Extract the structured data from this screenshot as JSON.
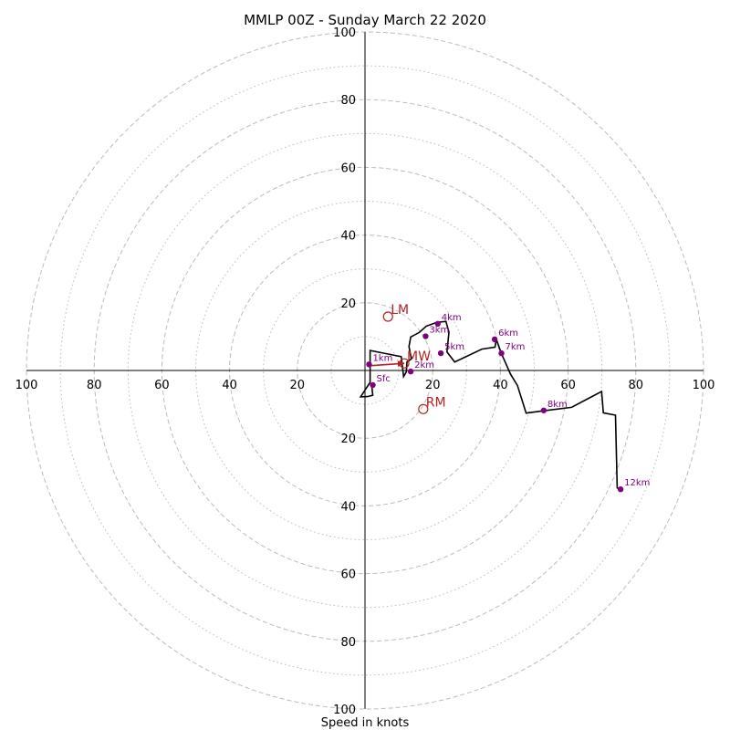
{
  "chart_data": {
    "type": "line",
    "title": "MMLP 00Z - Sunday March 22 2020",
    "xlabel": "Speed in knots",
    "ylabel": "",
    "xlim": [
      -100,
      100
    ],
    "ylim": [
      -100,
      100
    ],
    "ring_step_major": 20,
    "ring_step_minor": 10,
    "ring_labels": [
      "20",
      "40",
      "60",
      "80",
      "100"
    ],
    "grid": true,
    "hodograph": {
      "u": [
        2.0,
        2.3,
        0.7,
        -1.3,
        1.5,
        1.5,
        8.0,
        10.7,
        11.4,
        12.2,
        12.4,
        13.7,
        13.0,
        13.5,
        16.0,
        18.1,
        21.2,
        23.9,
        24.8,
        24.2,
        26.5,
        34.5,
        38.4,
        38.8,
        40.3,
        43.0,
        45.0,
        47.6,
        53.0,
        61.0,
        69.9,
        70.4,
        74.0,
        74.5,
        75.7
      ],
      "v": [
        -4.5,
        -7.3,
        -7.7,
        -7.8,
        -3.5,
        5.9,
        4.6,
        4.1,
        -1.8,
        -0.4,
        2.5,
        3.4,
        7.1,
        9.9,
        11.2,
        13.1,
        14.2,
        14.5,
        11.3,
        5.5,
        2.5,
        6.3,
        6.9,
        9.2,
        5.0,
        -1.1,
        -4.4,
        -12.6,
        -11.9,
        -10.9,
        -6.2,
        -12.5,
        -13.2,
        -34.7,
        -35.2
      ]
    },
    "height_markers": [
      {
        "label": "Sfc",
        "u": 2.3,
        "v": -4.3
      },
      {
        "label": "1km",
        "u": 1.2,
        "v": 1.8
      },
      {
        "label": "2km",
        "u": 13.5,
        "v": -0.3
      },
      {
        "label": "3km",
        "u": 17.9,
        "v": 10.1
      },
      {
        "label": "4km",
        "u": 21.5,
        "v": 13.8
      },
      {
        "label": "5km",
        "u": 22.4,
        "v": 5.1
      },
      {
        "label": "6km",
        "u": 38.3,
        "v": 9.2
      },
      {
        "label": "7km",
        "u": 40.3,
        "v": 5.1
      },
      {
        "label": "8km",
        "u": 52.8,
        "v": -11.8
      },
      {
        "label": "12km",
        "u": 75.5,
        "v": -35.1
      }
    ],
    "storm_motion": [
      {
        "label": "LM",
        "u": 6.8,
        "v": 15.9
      },
      {
        "label": "MW",
        "u": 11.6,
        "v": 2.1
      },
      {
        "label": "RM",
        "u": 17.2,
        "v": -11.4
      }
    ],
    "mean_wind_vector": {
      "from_u": 1.3,
      "from_v": 1.4,
      "to_u": 11.6,
      "to_v": 2.1
    },
    "colors": {
      "hodograph_line": "#000000",
      "height_markers": "#800080",
      "storm_motion": "#b22222",
      "grid": "#bbbbbb"
    }
  }
}
